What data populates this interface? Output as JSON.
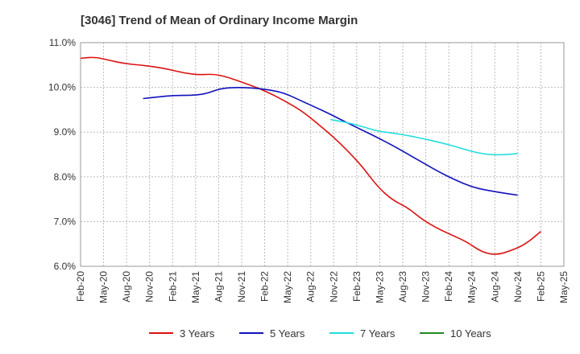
{
  "chart_data": {
    "type": "line",
    "title": "[3046]  Trend of Mean of Ordinary Income Margin",
    "xlabel": "",
    "ylabel": "",
    "ylim": [
      6.0,
      11.0
    ],
    "y_ticks": [
      "6.0%",
      "7.0%",
      "8.0%",
      "9.0%",
      "10.0%",
      "11.0%"
    ],
    "y_tick_values": [
      6.0,
      7.0,
      8.0,
      9.0,
      10.0,
      11.0
    ],
    "x_ticks": [
      "Feb-20",
      "May-20",
      "Aug-20",
      "Nov-20",
      "Feb-21",
      "May-21",
      "Aug-21",
      "Nov-21",
      "Feb-22",
      "May-22",
      "Aug-22",
      "Nov-22",
      "Feb-23",
      "May-23",
      "Aug-23",
      "Nov-23",
      "Feb-24",
      "May-24",
      "Aug-24",
      "Nov-24",
      "Feb-25",
      "May-25"
    ],
    "grid": true,
    "legend_position": "bottom",
    "series": [
      {
        "name": "3 Years",
        "color": "#dd1111",
        "values": [
          10.65,
          10.68,
          10.6,
          10.53,
          10.5,
          10.46,
          10.4,
          10.32,
          10.28,
          10.3,
          10.22,
          10.1,
          9.98,
          9.83,
          9.65,
          9.45,
          9.18,
          8.9,
          8.58,
          8.22,
          7.78,
          7.48,
          7.32,
          7.05,
          6.85,
          6.7,
          6.55,
          6.32,
          6.25,
          6.35,
          6.5,
          6.78
        ]
      },
      {
        "name": "5 Years",
        "color": "#1111bb",
        "values": [
          null,
          null,
          null,
          null,
          9.75,
          9.79,
          9.82,
          9.82,
          9.85,
          9.98,
          10.0,
          9.99,
          9.95,
          9.88,
          9.72,
          9.56,
          9.4,
          9.22,
          9.05,
          8.88,
          8.7,
          8.5,
          8.3,
          8.1,
          7.93,
          7.78,
          7.7,
          7.64,
          7.59
        ]
      },
      {
        "name": "7 Years",
        "color": "#22dddd",
        "values": [
          null,
          null,
          null,
          null,
          null,
          null,
          null,
          null,
          null,
          null,
          null,
          null,
          null,
          null,
          null,
          null,
          9.28,
          9.22,
          9.13,
          9.02,
          8.98,
          8.92,
          8.85,
          8.77,
          8.68,
          8.57,
          8.5,
          8.49,
          8.52
        ]
      },
      {
        "name": "10 Years",
        "color": "#228822",
        "values": []
      }
    ]
  }
}
